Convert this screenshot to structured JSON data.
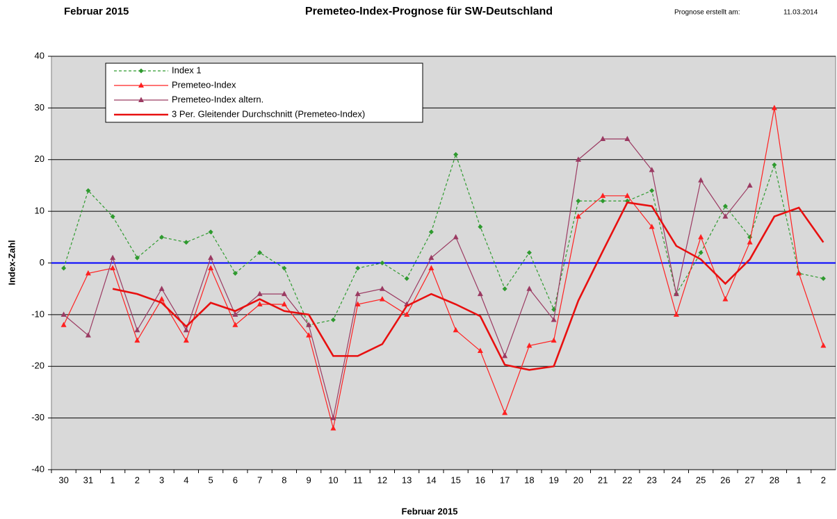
{
  "chart_data": {
    "type": "line",
    "header_left": "Februar 2015",
    "title": "Premeteo-Index-Prognose für SW-Deutschland",
    "forecast_label": "Prognose erstellt am:",
    "forecast_date": "11.03.2014",
    "x_label": "Februar 2015",
    "y_label": "Index-Zahl",
    "categories": [
      "30",
      "31",
      "1",
      "2",
      "3",
      "4",
      "5",
      "6",
      "7",
      "8",
      "9",
      "10",
      "11",
      "12",
      "13",
      "14",
      "15",
      "16",
      "17",
      "18",
      "19",
      "20",
      "21",
      "22",
      "23",
      "24",
      "25",
      "26",
      "27",
      "28",
      "1",
      "2"
    ],
    "ylim": [
      -40,
      40
    ],
    "yticks": [
      -40,
      -30,
      -20,
      -10,
      0,
      10,
      20,
      30,
      40
    ],
    "grid": true,
    "reference_line": {
      "value": 0,
      "color": "#0000ff"
    },
    "legend": "top-left",
    "series": [
      {
        "name": "Index 1",
        "color": "#2e9a2e",
        "dashed": true,
        "marker": "diamond",
        "width": 1.2,
        "values": [
          -1,
          14,
          9,
          1,
          5,
          4,
          6,
          -2,
          2,
          -1,
          -12,
          -11,
          -1,
          0,
          -3,
          6,
          21,
          7,
          -5,
          2,
          -9,
          12,
          12,
          12,
          14,
          -6,
          2,
          11,
          5,
          19,
          -2,
          -3
        ]
      },
      {
        "name": "Premeteo-Index",
        "color": "#ff2020",
        "dashed": false,
        "marker": "triangle",
        "width": 1.2,
        "values": [
          -12,
          -2,
          -1,
          -15,
          -7,
          -15,
          -1,
          -12,
          -8,
          -8,
          -14,
          -32,
          -8,
          -7,
          -10,
          -1,
          -13,
          -17,
          -29,
          -16,
          -15,
          9,
          13,
          13,
          7,
          -10,
          5,
          -7,
          4,
          30,
          -2,
          -16
        ]
      },
      {
        "name": "Premeteo-Index altern.",
        "color": "#9b3a62",
        "dashed": false,
        "marker": "triangle",
        "width": 1.2,
        "values": [
          -10,
          -14,
          1,
          -13,
          -5,
          -13,
          1,
          -10,
          -6,
          -6,
          -12,
          -30,
          -6,
          -5,
          -8,
          1,
          5,
          -6,
          -18,
          -5,
          -11,
          20,
          24,
          24,
          18,
          -6,
          16,
          9,
          15,
          null,
          null,
          null
        ]
      },
      {
        "name": "3 Per. Gleitender Durchschnitt (Premeteo-Index)",
        "color": "#e81010",
        "dashed": false,
        "marker": "none",
        "width": 2.6,
        "values": [
          null,
          null,
          -5,
          -6,
          -7.7,
          -12.3,
          -7.7,
          -9.3,
          -7,
          -9.3,
          -10,
          -18,
          -18,
          -15.7,
          -8.3,
          -6,
          -8,
          -10.3,
          -19.7,
          -20.7,
          -20,
          -7.3,
          2.3,
          11.7,
          11,
          3.3,
          0.7,
          -4,
          0.7,
          9,
          10.7,
          4
        ]
      }
    ]
  }
}
